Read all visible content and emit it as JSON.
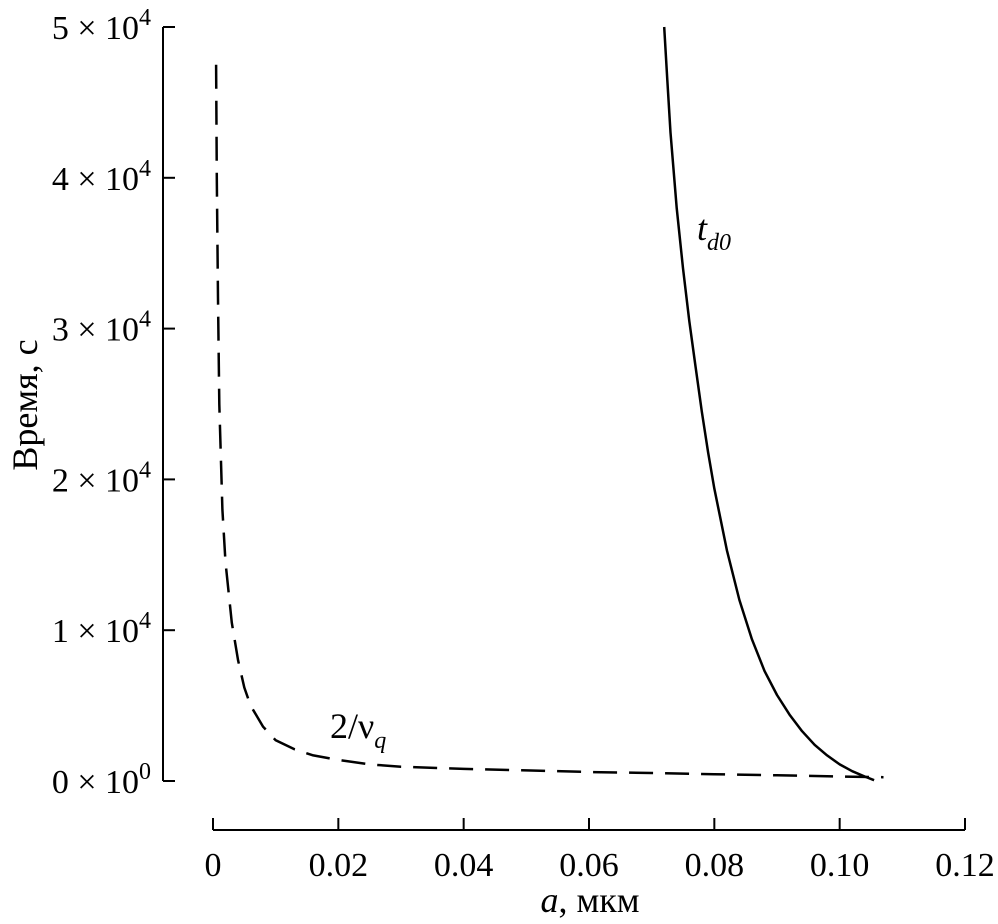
{
  "chart_data": {
    "type": "line",
    "xlabel_var": "a",
    "xlabel_unit": ", мкм",
    "ylabel": "Время, с",
    "xlim": [
      0,
      0.12
    ],
    "ylim": [
      0,
      50000
    ],
    "grid": false,
    "legend": "none",
    "x_ticks": [
      {
        "value": 0,
        "label": "0"
      },
      {
        "value": 0.02,
        "label": "0.02"
      },
      {
        "value": 0.04,
        "label": "0.04"
      },
      {
        "value": 0.06,
        "label": "0.06"
      },
      {
        "value": 0.08,
        "label": "0.08"
      },
      {
        "value": 0.1,
        "label": "0.10"
      },
      {
        "value": 0.12,
        "label": "0.12"
      }
    ],
    "y_ticks": [
      {
        "value": 0,
        "mant": "0",
        "times": " × 10",
        "exp": "0"
      },
      {
        "value": 10000,
        "mant": "1",
        "times": " × 10",
        "exp": "4"
      },
      {
        "value": 20000,
        "mant": "2",
        "times": " × 10",
        "exp": "4"
      },
      {
        "value": 30000,
        "mant": "3",
        "times": " × 10",
        "exp": "4"
      },
      {
        "value": 40000,
        "mant": "4",
        "times": " × 10",
        "exp": "4"
      },
      {
        "value": 50000,
        "mant": "5",
        "times": " × 10",
        "exp": "4"
      }
    ],
    "series": [
      {
        "label_main": "2/ν",
        "label_sub": "q",
        "style": "dashed",
        "color": "#000000",
        "x": [
          0.0005,
          0.0006,
          0.0008,
          0.001,
          0.0015,
          0.002,
          0.003,
          0.004,
          0.005,
          0.006,
          0.008,
          0.01,
          0.013,
          0.016,
          0.02,
          0.025,
          0.03,
          0.04,
          0.05,
          0.06,
          0.07,
          0.08,
          0.09,
          0.1,
          0.107
        ],
        "y": [
          47500,
          40000,
          32000,
          25000,
          18000,
          14500,
          10500,
          8000,
          6200,
          5000,
          3600,
          2700,
          2100,
          1700,
          1400,
          1100,
          950,
          800,
          700,
          600,
          530,
          450,
          380,
          300,
          250
        ]
      },
      {
        "label_main": "t",
        "label_sub": "d0",
        "style": "solid",
        "color": "#000000",
        "x": [
          0.072,
          0.0725,
          0.073,
          0.074,
          0.075,
          0.076,
          0.077,
          0.078,
          0.079,
          0.08,
          0.082,
          0.084,
          0.086,
          0.088,
          0.09,
          0.092,
          0.094,
          0.096,
          0.098,
          0.1,
          0.102,
          0.104,
          0.1055
        ],
        "y": [
          50000,
          46500,
          43000,
          38000,
          34000,
          30500,
          27500,
          24500,
          21800,
          19400,
          15300,
          12000,
          9400,
          7300,
          5700,
          4400,
          3300,
          2400,
          1700,
          1100,
          650,
          300,
          50
        ]
      }
    ]
  }
}
